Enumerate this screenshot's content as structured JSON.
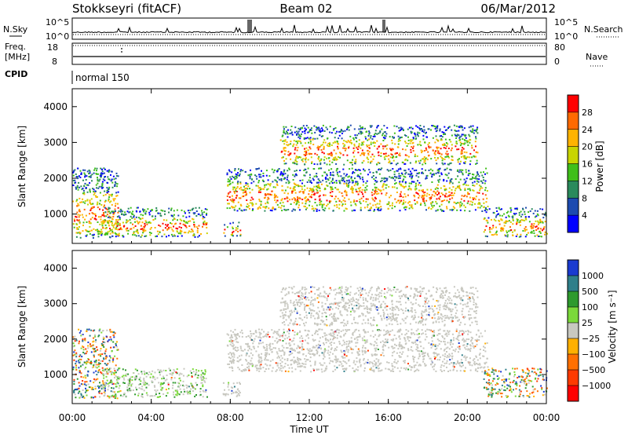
{
  "header": {
    "station": "Stokkseyri (fitACF)",
    "beam": "Beam 02",
    "date": "06/Mar/2012"
  },
  "noise_panel": {
    "left_label": "N.Sky",
    "right_label": "N.Search",
    "left_ticks": [
      "10^5",
      "10^0"
    ],
    "right_ticks": [
      "10^5",
      "10^0"
    ]
  },
  "freq_panel": {
    "left_label_1": "Freq.",
    "left_label_2": "[MHz]",
    "right_label": "Nave",
    "left_ticks": [
      "18",
      "8"
    ],
    "right_ticks": [
      "80",
      "0"
    ]
  },
  "cpid_panel": {
    "label": "CPID",
    "mode_text": "normal 150"
  },
  "chart_data": [
    {
      "type": "heatmap",
      "quantity": "power",
      "ylabel": "Slant Range [km]",
      "ylim": [
        180,
        4500
      ],
      "yticks": [
        "1000",
        "2000",
        "3000",
        "4000"
      ],
      "colorbar": {
        "label": "Power [dB]",
        "ticks": [
          "28",
          "24",
          "20",
          "16",
          "12",
          "8",
          "4"
        ],
        "colors": [
          "#ff0000",
          "#ff6a00",
          "#ffb300",
          "#c8d400",
          "#3fbf1a",
          "#2a8a5c",
          "#1c4ab0",
          "#0000ff"
        ]
      },
      "regions": [
        {
          "t": [
            0.0,
            2.3
          ],
          "range": [
            350,
            2300
          ]
        },
        {
          "t": [
            1.5,
            6.8
          ],
          "range": [
            380,
            1200
          ]
        },
        {
          "t": [
            7.6,
            8.5
          ],
          "range": [
            400,
            800
          ]
        },
        {
          "t": [
            7.8,
            21.0
          ],
          "range": [
            1100,
            2300
          ]
        },
        {
          "t": [
            10.5,
            20.5
          ],
          "range": [
            2400,
            3500
          ]
        },
        {
          "t": [
            20.8,
            24.0
          ],
          "range": [
            380,
            1200
          ]
        }
      ]
    },
    {
      "type": "heatmap",
      "quantity": "velocity",
      "ylabel": "Slant Range [km]",
      "xlabel": "Time UT",
      "ylim": [
        180,
        4500
      ],
      "yticks": [
        "1000",
        "2000",
        "3000",
        "4000"
      ],
      "xticks": [
        "00:00",
        "04:00",
        "08:00",
        "12:00",
        "16:00",
        "20:00",
        "00:00"
      ],
      "colorbar": {
        "label": "Velocity [m s⁻¹]",
        "ticks": [
          "1000",
          "500",
          "100",
          "25",
          "−25",
          "−100",
          "−500",
          "−1000"
        ],
        "colors": [
          "#1a3bd0",
          "#2f7f8a",
          "#2e9a2e",
          "#7bd93a",
          "#c8c8c0",
          "#ffb000",
          "#ff7000",
          "#ff3a00",
          "#ff0000"
        ]
      },
      "regions": [
        {
          "t": [
            0.0,
            2.3
          ],
          "range": [
            350,
            2300
          ]
        },
        {
          "t": [
            1.5,
            6.8
          ],
          "range": [
            380,
            1200
          ]
        },
        {
          "t": [
            7.6,
            8.5
          ],
          "range": [
            400,
            800
          ]
        },
        {
          "t": [
            7.8,
            21.0
          ],
          "range": [
            1100,
            2300
          ]
        },
        {
          "t": [
            10.5,
            20.5
          ],
          "range": [
            2400,
            3500
          ]
        },
        {
          "t": [
            20.8,
            24.0
          ],
          "range": [
            380,
            1200
          ]
        }
      ]
    }
  ]
}
